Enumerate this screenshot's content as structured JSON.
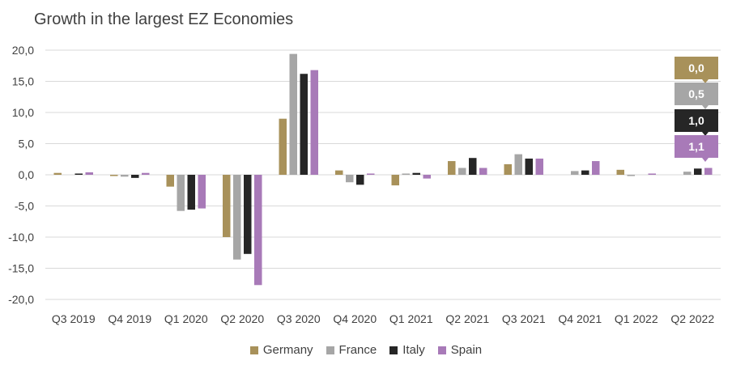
{
  "chart_data": {
    "type": "bar",
    "title": "Growth in the largest EZ Economies",
    "categories": [
      "Q3 2019",
      "Q4 2019",
      "Q1 2020",
      "Q2 2020",
      "Q3 2020",
      "Q4 2020",
      "Q1 2021",
      "Q2 2021",
      "Q3 2021",
      "Q4 2021",
      "Q1 2022",
      "Q2 2022"
    ],
    "series": [
      {
        "name": "Germany",
        "color": "#A8915A",
        "values": [
          0.3,
          -0.2,
          -1.9,
          -10.0,
          9.0,
          0.7,
          -1.7,
          2.2,
          1.7,
          0.0,
          0.8,
          0.0
        ]
      },
      {
        "name": "France",
        "color": "#A6A6A6",
        "values": [
          0.0,
          -0.3,
          -5.8,
          -13.6,
          19.4,
          -1.2,
          0.2,
          1.1,
          3.3,
          0.6,
          -0.2,
          0.5
        ]
      },
      {
        "name": "Italy",
        "color": "#262626",
        "values": [
          0.2,
          -0.5,
          -5.6,
          -12.7,
          16.2,
          -1.6,
          0.3,
          2.7,
          2.6,
          0.7,
          0.0,
          1.0
        ]
      },
      {
        "name": "Spain",
        "color": "#A87AB8",
        "values": [
          0.4,
          0.3,
          -5.4,
          -17.7,
          16.8,
          0.2,
          -0.6,
          1.1,
          2.6,
          2.2,
          0.2,
          1.1
        ]
      }
    ],
    "yticks": [
      "20,0",
      "15,0",
      "10,0",
      "5,0",
      "0,0",
      "-5,0",
      "-10,0",
      "-15,0",
      "-20,0"
    ],
    "ylim": [
      -20,
      20
    ],
    "grid": true,
    "legend_position": "bottom",
    "value_badges": [
      {
        "series": "Germany",
        "label": "0,0",
        "color": "#A8915A"
      },
      {
        "series": "France",
        "label": "0,5",
        "color": "#A6A6A6"
      },
      {
        "series": "Italy",
        "label": "1,0",
        "color": "#262626"
      },
      {
        "series": "Spain",
        "label": "1,1",
        "color": "#A87AB8"
      }
    ]
  }
}
